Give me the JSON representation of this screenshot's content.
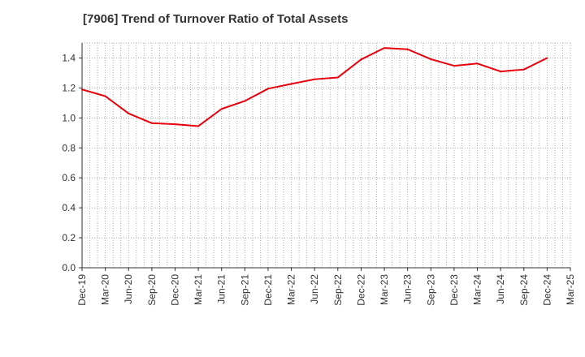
{
  "chart_data": {
    "type": "line",
    "title": "[7906]  Trend of Turnover Ratio of Total Assets",
    "xlabel": "",
    "ylabel": "",
    "ylim": [
      0,
      1.5
    ],
    "yticks": [
      0.0,
      0.2,
      0.4,
      0.6,
      0.8,
      1.0,
      1.2,
      1.4
    ],
    "ytick_labels": [
      "0.0",
      "0.2",
      "0.4",
      "0.6",
      "0.8",
      "1.0",
      "1.2",
      "1.4"
    ],
    "x_tick_labels": [
      "Dec-19",
      "Mar-20",
      "Jun-20",
      "Sep-20",
      "Dec-20",
      "Mar-21",
      "Jun-21",
      "Sep-21",
      "Dec-21",
      "Mar-22",
      "Jun-22",
      "Sep-22",
      "Dec-22",
      "Mar-23",
      "Jun-23",
      "Sep-23",
      "Dec-23",
      "Mar-24",
      "Jun-24",
      "Sep-24",
      "Dec-24",
      "Mar-25"
    ],
    "grid": true,
    "series_color": "#e8000b",
    "series": [
      {
        "x": [
          "Dec-19",
          "Mar-20",
          "Jun-20",
          "Sep-20",
          "Dec-20",
          "Mar-21",
          "Jun-21",
          "Sep-21",
          "Dec-21",
          "Mar-22",
          "Jun-22",
          "Sep-22",
          "Dec-22",
          "Mar-23",
          "Jun-23",
          "Sep-23",
          "Dec-23",
          "Mar-24",
          "Jun-24",
          "Sep-24",
          "Dec-24"
        ],
        "values": [
          1.19,
          1.145,
          1.03,
          0.965,
          0.958,
          0.945,
          1.06,
          1.113,
          1.195,
          1.227,
          1.258,
          1.27,
          1.39,
          1.467,
          1.458,
          1.392,
          1.348,
          1.363,
          1.31,
          1.323,
          1.4
        ]
      }
    ]
  }
}
